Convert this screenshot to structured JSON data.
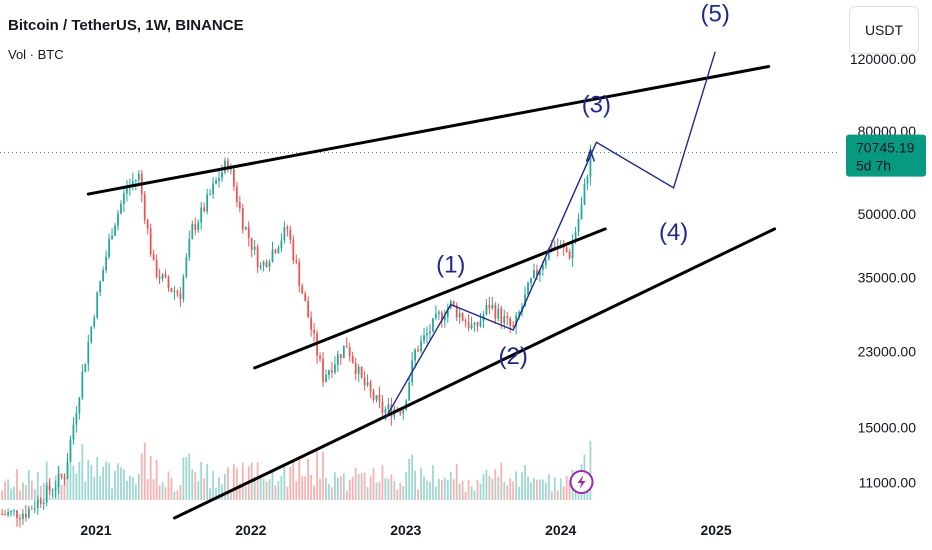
{
  "header": {
    "title": "Bitcoin / TetherUS, 1W, BINANCE",
    "volume_label": "Vol · BTC"
  },
  "currency_button": "USDT",
  "colors": {
    "up": "#26a69a",
    "down": "#ef5350",
    "wave_line": "#1f2a8a",
    "trend_line": "#000000",
    "price_tag": "#089981",
    "power_icon": "#9c27b0"
  },
  "price_axis": {
    "ticks": [
      "120000.00",
      "80000.00",
      "50000.00",
      "35000.00",
      "23000.00",
      "15000.00",
      "11000.00"
    ],
    "current_price": "70745.19",
    "countdown": "5d 7h"
  },
  "time_axis": {
    "ticks": [
      "2021",
      "2022",
      "2023",
      "2024",
      "2025"
    ]
  },
  "wave_labels": [
    "(1)",
    "(2)",
    "(3)",
    "(4)",
    "(5)"
  ],
  "chart_data": {
    "type": "candlestick",
    "title": "Bitcoin / TetherUS, 1W, BINANCE",
    "interval": "1W",
    "y_scale": "log",
    "ylim": [
      9000,
      160000
    ],
    "xlim": [
      "2020-05-20",
      "2025-10-20"
    ],
    "price_path": [
      [
        "2020-05-25",
        9200
      ],
      [
        "2020-07-20",
        9300
      ],
      [
        "2020-09-07",
        10400
      ],
      [
        "2020-10-19",
        11500
      ],
      [
        "2020-11-23",
        18500
      ],
      [
        "2020-12-28",
        29000
      ],
      [
        "2021-02-08",
        46000
      ],
      [
        "2021-03-15",
        58000
      ],
      [
        "2021-04-12",
        62000
      ],
      [
        "2021-05-17",
        37000
      ],
      [
        "2021-06-21",
        33000
      ],
      [
        "2021-07-19",
        32000
      ],
      [
        "2021-08-16",
        46000
      ],
      [
        "2021-09-06",
        50000
      ],
      [
        "2021-10-18",
        62000
      ],
      [
        "2021-11-08",
        67000
      ],
      [
        "2021-12-13",
        48000
      ],
      [
        "2022-01-24",
        37000
      ],
      [
        "2022-03-28",
        46000
      ],
      [
        "2022-05-09",
        30000
      ],
      [
        "2022-06-20",
        20000
      ],
      [
        "2022-08-15",
        24000
      ],
      [
        "2022-09-19",
        19500
      ],
      [
        "2022-11-07",
        16500
      ],
      [
        "2022-12-26",
        16800
      ],
      [
        "2023-01-23",
        23000
      ],
      [
        "2023-03-20",
        28000
      ],
      [
        "2023-04-17",
        30000
      ],
      [
        "2023-06-12",
        26000
      ],
      [
        "2023-07-17",
        30000
      ],
      [
        "2023-09-11",
        26000
      ],
      [
        "2023-10-23",
        34000
      ],
      [
        "2023-12-11",
        42000
      ],
      [
        "2024-01-22",
        40000
      ],
      [
        "2024-02-19",
        52000
      ],
      [
        "2024-03-11",
        70745
      ]
    ],
    "annotations": {
      "waves": [
        {
          "label": "(1)",
          "date": "2023-04-17",
          "price": 30000
        },
        {
          "label": "(2)",
          "date": "2023-09-11",
          "price": 26000
        },
        {
          "label": "(3)",
          "date": "2024-03-25",
          "price": 75000
        },
        {
          "label": "(4)",
          "date": "2024-09-23",
          "price": 58000
        },
        {
          "label": "(5)",
          "date": "2024-12-30",
          "price": 125000
        }
      ],
      "trendlines": [
        {
          "from": [
            "2020-12-14",
            56000
          ],
          "to": [
            "2025-05-05",
            115000
          ]
        },
        {
          "from": [
            "2022-01-10",
            21000
          ],
          "to": [
            "2024-04-15",
            46000
          ]
        },
        {
          "from": [
            "2021-07-05",
            9000
          ],
          "to": [
            "2025-05-19",
            46000
          ]
        }
      ]
    }
  }
}
